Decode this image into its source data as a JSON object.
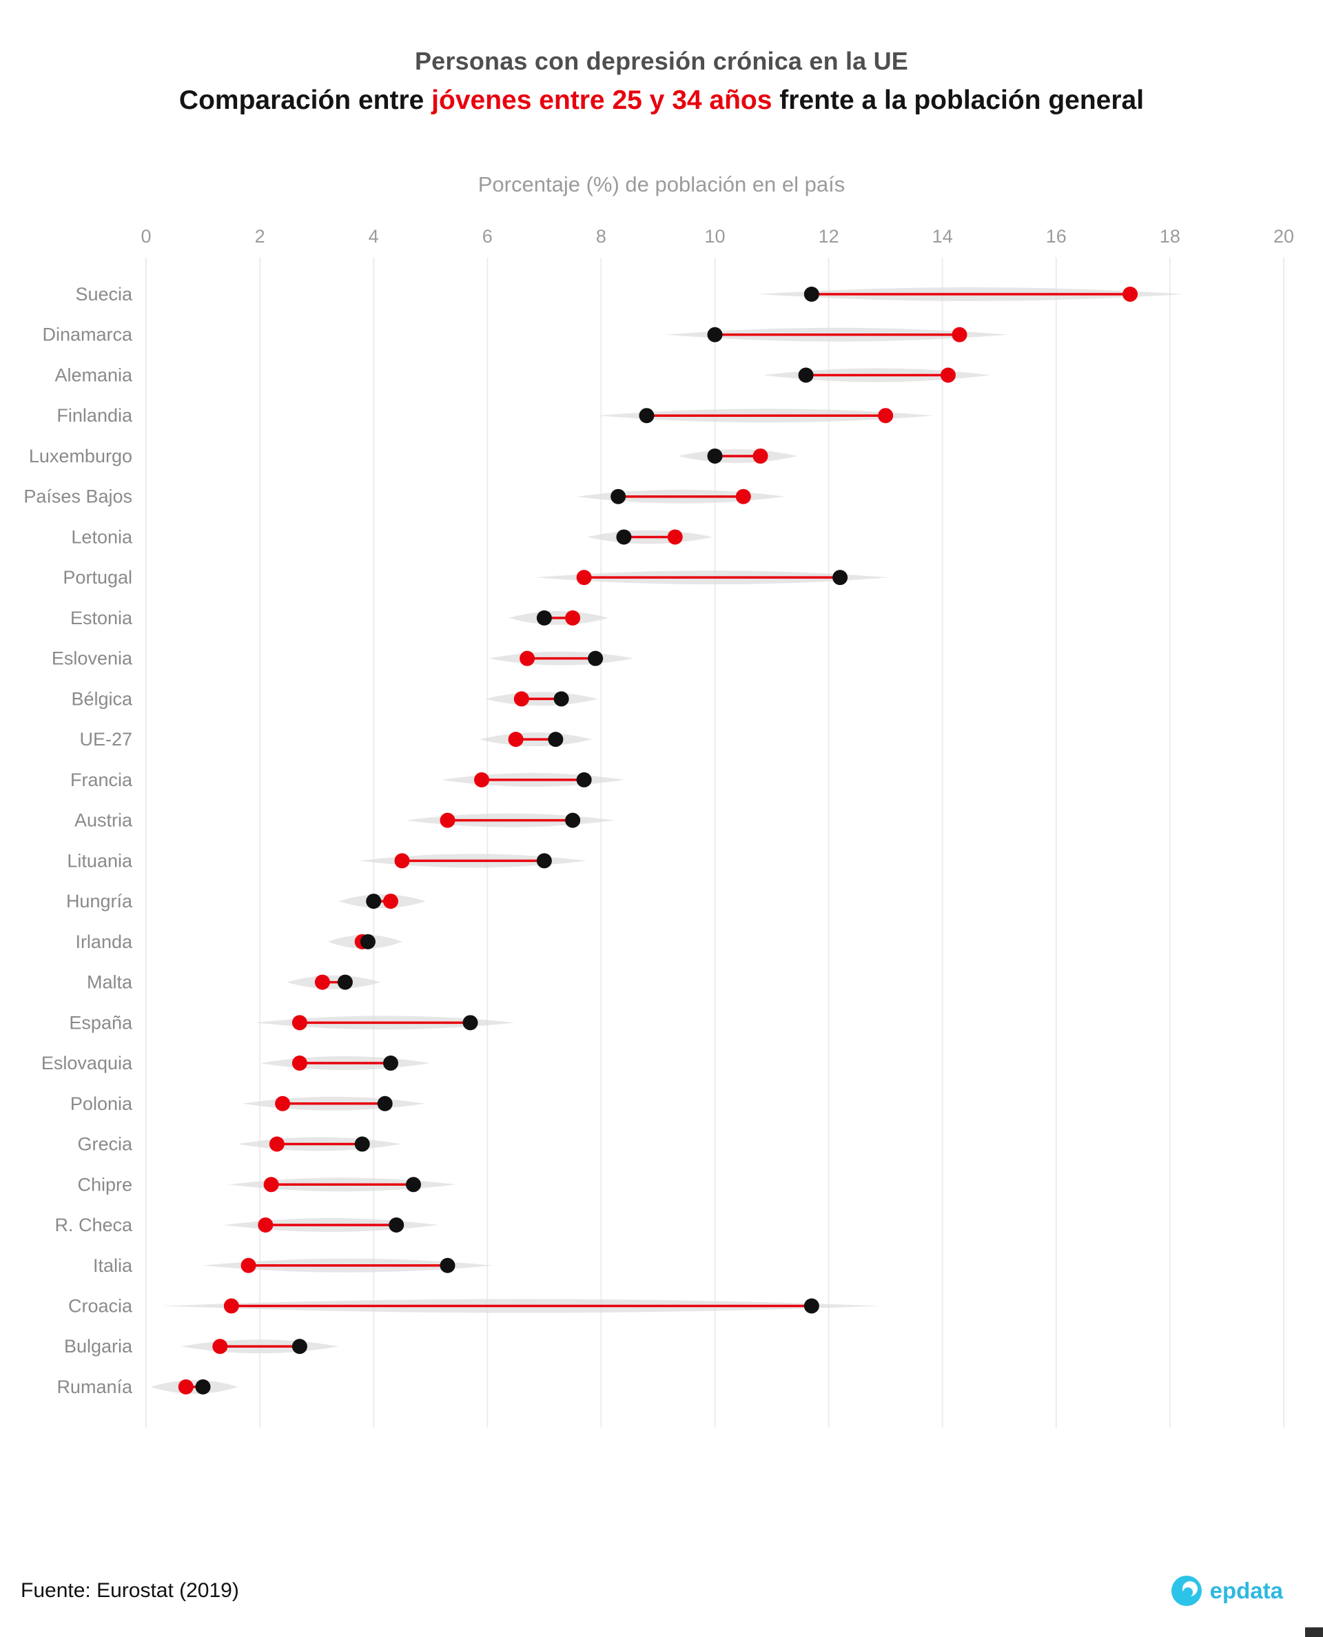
{
  "title": "Personas con depresión crónica en la UE",
  "subtitle": {
    "prefix": "Comparación entre ",
    "highlight": "jóvenes entre 25 y 34 años",
    "suffix": " frente a la población general"
  },
  "axis_title": "Porcentaje (%) de población en el país",
  "footer": {
    "source": "Fuente: Eurostat (2019)",
    "brand": "epdata"
  },
  "colors": {
    "band": "#dedede",
    "grid": "#ececec",
    "axis_text": "#9b9b9b",
    "label_text": "#8a8a8a",
    "brand_cyan": "#2cc3e8"
  },
  "chart_data": {
    "type": "dumbbell",
    "title": "Personas con depresión crónica en la UE",
    "subtitle": "Comparación entre jóvenes entre 25 y 34 años frente a la población general",
    "xlabel": "Porcentaje (%) de población en el país",
    "x_axis": {
      "min": 0,
      "max": 20,
      "ticks": [
        0,
        2,
        4,
        6,
        8,
        10,
        12,
        14,
        16,
        18,
        20
      ]
    },
    "grid": "vertical",
    "colors": {
      "young": "#e8000d",
      "general": "#111111"
    },
    "series_names": {
      "young": "jóvenes entre 25 y 34 años",
      "general": "población general"
    },
    "rows": [
      {
        "country": "Suecia",
        "general": 11.7,
        "young": 17.3
      },
      {
        "country": "Dinamarca",
        "general": 10.0,
        "young": 14.3
      },
      {
        "country": "Alemania",
        "general": 11.6,
        "young": 14.1
      },
      {
        "country": "Finlandia",
        "general": 8.8,
        "young": 13.0
      },
      {
        "country": "Luxemburgo",
        "general": 10.0,
        "young": 10.8
      },
      {
        "country": "Países Bajos",
        "general": 8.3,
        "young": 10.5
      },
      {
        "country": "Letonia",
        "general": 8.4,
        "young": 9.3
      },
      {
        "country": "Portugal",
        "general": 12.2,
        "young": 7.7
      },
      {
        "country": "Estonia",
        "general": 7.0,
        "young": 7.5
      },
      {
        "country": "Eslovenia",
        "general": 7.9,
        "young": 6.7
      },
      {
        "country": "Bélgica",
        "general": 7.3,
        "young": 6.6
      },
      {
        "country": "UE-27",
        "general": 7.2,
        "young": 6.5
      },
      {
        "country": "Francia",
        "general": 7.7,
        "young": 5.9
      },
      {
        "country": "Austria",
        "general": 7.5,
        "young": 5.3
      },
      {
        "country": "Lituania",
        "general": 7.0,
        "young": 4.5
      },
      {
        "country": "Hungría",
        "general": 4.0,
        "young": 4.3
      },
      {
        "country": "Irlanda",
        "general": 3.9,
        "young": 3.8
      },
      {
        "country": "Malta",
        "general": 3.5,
        "young": 3.1
      },
      {
        "country": "España",
        "general": 5.7,
        "young": 2.7
      },
      {
        "country": "Eslovaquia",
        "general": 4.3,
        "young": 2.7
      },
      {
        "country": "Polonia",
        "general": 4.2,
        "young": 2.4
      },
      {
        "country": "Grecia",
        "general": 3.8,
        "young": 2.3
      },
      {
        "country": "Chipre",
        "general": 4.7,
        "young": 2.2
      },
      {
        "country": "R. Checa",
        "general": 4.4,
        "young": 2.1
      },
      {
        "country": "Italia",
        "general": 5.3,
        "young": 1.8
      },
      {
        "country": "Croacia",
        "general": 11.7,
        "young": 1.5
      },
      {
        "country": "Bulgaria",
        "general": 2.7,
        "young": 1.3
      },
      {
        "country": "Rumanía",
        "general": 1.0,
        "young": 0.7
      }
    ]
  }
}
